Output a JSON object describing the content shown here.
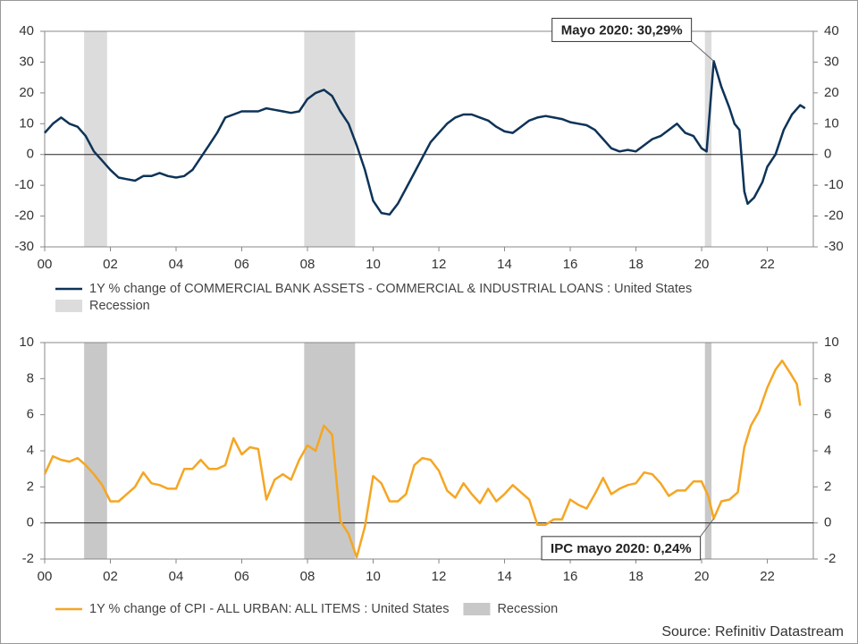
{
  "chart_data": [
    {
      "type": "line",
      "x": [
        2000,
        2000.25,
        2000.5,
        2000.75,
        2001,
        2001.25,
        2001.5,
        2001.75,
        2002,
        2002.25,
        2002.5,
        2002.75,
        2003,
        2003.25,
        2003.5,
        2003.75,
        2004,
        2004.25,
        2004.5,
        2004.75,
        2005,
        2005.25,
        2005.5,
        2005.75,
        2006,
        2006.25,
        2006.5,
        2006.75,
        2007,
        2007.25,
        2007.5,
        2007.75,
        2008,
        2008.25,
        2008.5,
        2008.75,
        2009,
        2009.25,
        2009.5,
        2009.75,
        2010,
        2010.25,
        2010.5,
        2010.75,
        2011,
        2011.25,
        2011.5,
        2011.75,
        2012,
        2012.25,
        2012.5,
        2012.75,
        2013,
        2013.25,
        2013.5,
        2013.75,
        2014,
        2014.25,
        2014.5,
        2014.75,
        2015,
        2015.25,
        2015.5,
        2015.75,
        2016,
        2016.25,
        2016.5,
        2016.75,
        2017,
        2017.25,
        2017.5,
        2017.75,
        2018,
        2018.25,
        2018.5,
        2018.75,
        2019,
        2019.25,
        2019.5,
        2019.75,
        2020,
        2020.15,
        2020.37,
        2020.6,
        2020.85,
        2021,
        2021.15,
        2021.3,
        2021.4,
        2021.6,
        2021.85,
        2022,
        2022.25,
        2022.5,
        2022.75,
        2023,
        2023.15
      ],
      "series": [
        {
          "name": "1Y % change of COMMERCIAL BANK ASSETS - COMMERCIAL & INDUSTRIAL LOANS : United States",
          "color": "#0d3358",
          "values": [
            7,
            10,
            12,
            10,
            9,
            6,
            1,
            -2,
            -5,
            -7.5,
            -8,
            -8.5,
            -7,
            -7,
            -6,
            -7,
            -7.5,
            -7,
            -5,
            -1,
            3,
            7,
            12,
            13,
            14,
            14,
            14,
            15,
            14.5,
            14,
            13.5,
            14,
            18,
            20,
            21,
            19,
            14,
            10,
            3,
            -5,
            -15,
            -19,
            -19.5,
            -16,
            -11,
            -6,
            -1,
            4,
            7,
            10,
            12,
            13,
            13,
            12,
            11,
            9,
            7.5,
            7,
            9,
            11,
            12,
            12.5,
            12,
            11.5,
            10.5,
            10,
            9.5,
            8,
            5,
            2,
            1,
            1.5,
            1,
            3,
            5,
            6,
            8,
            10,
            7,
            6,
            2,
            1,
            30.29,
            22,
            15,
            10,
            8,
            -12,
            -16,
            -14,
            -9,
            -4,
            0,
            8,
            13,
            16,
            15
          ]
        }
      ],
      "recession": {
        "name": "Recession",
        "color": "#dcdcdc",
        "periods": [
          [
            2001.2,
            2001.9
          ],
          [
            2007.9,
            2009.45
          ],
          [
            2020.1,
            2020.3
          ]
        ]
      },
      "annotation": {
        "text": "Mayo 2020: 30,29%",
        "x": 2020.37,
        "y": 30.29
      },
      "xlim": [
        2000,
        2023.4
      ],
      "xticks": [
        {
          "value": 2000,
          "label": "00"
        },
        {
          "value": 2002,
          "label": "02"
        },
        {
          "value": 2004,
          "label": "04"
        },
        {
          "value": 2006,
          "label": "06"
        },
        {
          "value": 2008,
          "label": "08"
        },
        {
          "value": 2010,
          "label": "10"
        },
        {
          "value": 2012,
          "label": "12"
        },
        {
          "value": 2014,
          "label": "14"
        },
        {
          "value": 2016,
          "label": "16"
        },
        {
          "value": 2018,
          "label": "18"
        },
        {
          "value": 2020,
          "label": "20"
        },
        {
          "value": 2022,
          "label": "22"
        }
      ],
      "ylim": [
        -30,
        40
      ],
      "yticks": [
        -30,
        -20,
        -10,
        0,
        10,
        20,
        30,
        40
      ]
    },
    {
      "type": "line",
      "x": [
        2000,
        2000.25,
        2000.5,
        2000.75,
        2001,
        2001.25,
        2001.5,
        2001.75,
        2002,
        2002.25,
        2002.5,
        2002.75,
        2003,
        2003.25,
        2003.5,
        2003.75,
        2004,
        2004.25,
        2004.5,
        2004.75,
        2005,
        2005.25,
        2005.5,
        2005.75,
        2006,
        2006.25,
        2006.5,
        2006.75,
        2007,
        2007.25,
        2007.5,
        2007.75,
        2008,
        2008.25,
        2008.5,
        2008.75,
        2009,
        2009.25,
        2009.5,
        2009.75,
        2010,
        2010.25,
        2010.5,
        2010.75,
        2011,
        2011.25,
        2011.5,
        2011.75,
        2012,
        2012.25,
        2012.5,
        2012.75,
        2013,
        2013.25,
        2013.5,
        2013.75,
        2014,
        2014.25,
        2014.5,
        2014.75,
        2015,
        2015.25,
        2015.5,
        2015.75,
        2016,
        2016.25,
        2016.5,
        2016.75,
        2017,
        2017.25,
        2017.5,
        2017.75,
        2018,
        2018.25,
        2018.5,
        2018.75,
        2019,
        2019.25,
        2019.5,
        2019.75,
        2020,
        2020.2,
        2020.37,
        2020.6,
        2020.85,
        2021.1,
        2021.3,
        2021.5,
        2021.75,
        2022,
        2022.25,
        2022.45,
        2022.7,
        2022.9,
        2023
      ],
      "series": [
        {
          "name": "1Y % change of CPI - ALL URBAN: ALL ITEMS : United States",
          "color": "#f5a623",
          "values": [
            2.7,
            3.7,
            3.5,
            3.4,
            3.6,
            3.2,
            2.7,
            2.1,
            1.2,
            1.2,
            1.6,
            2.0,
            2.8,
            2.2,
            2.1,
            1.9,
            1.9,
            3.0,
            3.0,
            3.5,
            3.0,
            3.0,
            3.2,
            4.7,
            3.8,
            4.2,
            4.1,
            1.3,
            2.4,
            2.7,
            2.4,
            3.5,
            4.3,
            4.0,
            5.4,
            4.9,
            0.1,
            -0.6,
            -1.9,
            -0.2,
            2.6,
            2.2,
            1.2,
            1.2,
            1.6,
            3.2,
            3.6,
            3.5,
            2.9,
            1.8,
            1.4,
            2.2,
            1.6,
            1.1,
            1.9,
            1.2,
            1.6,
            2.1,
            1.7,
            1.3,
            -0.1,
            -0.1,
            0.2,
            0.2,
            1.3,
            1.0,
            0.8,
            1.6,
            2.5,
            1.6,
            1.9,
            2.1,
            2.2,
            2.8,
            2.7,
            2.2,
            1.5,
            1.8,
            1.8,
            2.3,
            2.3,
            1.5,
            0.24,
            1.2,
            1.3,
            1.7,
            4.2,
            5.4,
            6.2,
            7.5,
            8.5,
            9.0,
            8.3,
            7.7,
            6.5
          ]
        }
      ],
      "recession": {
        "name": "Recession",
        "color": "#c8c8c8",
        "periods": [
          [
            2001.2,
            2001.9
          ],
          [
            2007.9,
            2009.45
          ],
          [
            2020.1,
            2020.3
          ]
        ]
      },
      "annotation": {
        "text": "IPC mayo 2020: 0,24%",
        "x": 2020.37,
        "y": 0.24
      },
      "xlim": [
        2000,
        2023.4
      ],
      "xticks": [
        {
          "value": 2000,
          "label": "00"
        },
        {
          "value": 2002,
          "label": "02"
        },
        {
          "value": 2004,
          "label": "04"
        },
        {
          "value": 2006,
          "label": "06"
        },
        {
          "value": 2008,
          "label": "08"
        },
        {
          "value": 2010,
          "label": "10"
        },
        {
          "value": 2012,
          "label": "12"
        },
        {
          "value": 2014,
          "label": "14"
        },
        {
          "value": 2016,
          "label": "16"
        },
        {
          "value": 2018,
          "label": "18"
        },
        {
          "value": 2020,
          "label": "20"
        },
        {
          "value": 2022,
          "label": "22"
        }
      ],
      "ylim": [
        -2,
        10
      ],
      "yticks": [
        -2,
        0,
        2,
        4,
        6,
        8,
        10
      ]
    }
  ],
  "source": "Source: Refinitiv Datastream"
}
